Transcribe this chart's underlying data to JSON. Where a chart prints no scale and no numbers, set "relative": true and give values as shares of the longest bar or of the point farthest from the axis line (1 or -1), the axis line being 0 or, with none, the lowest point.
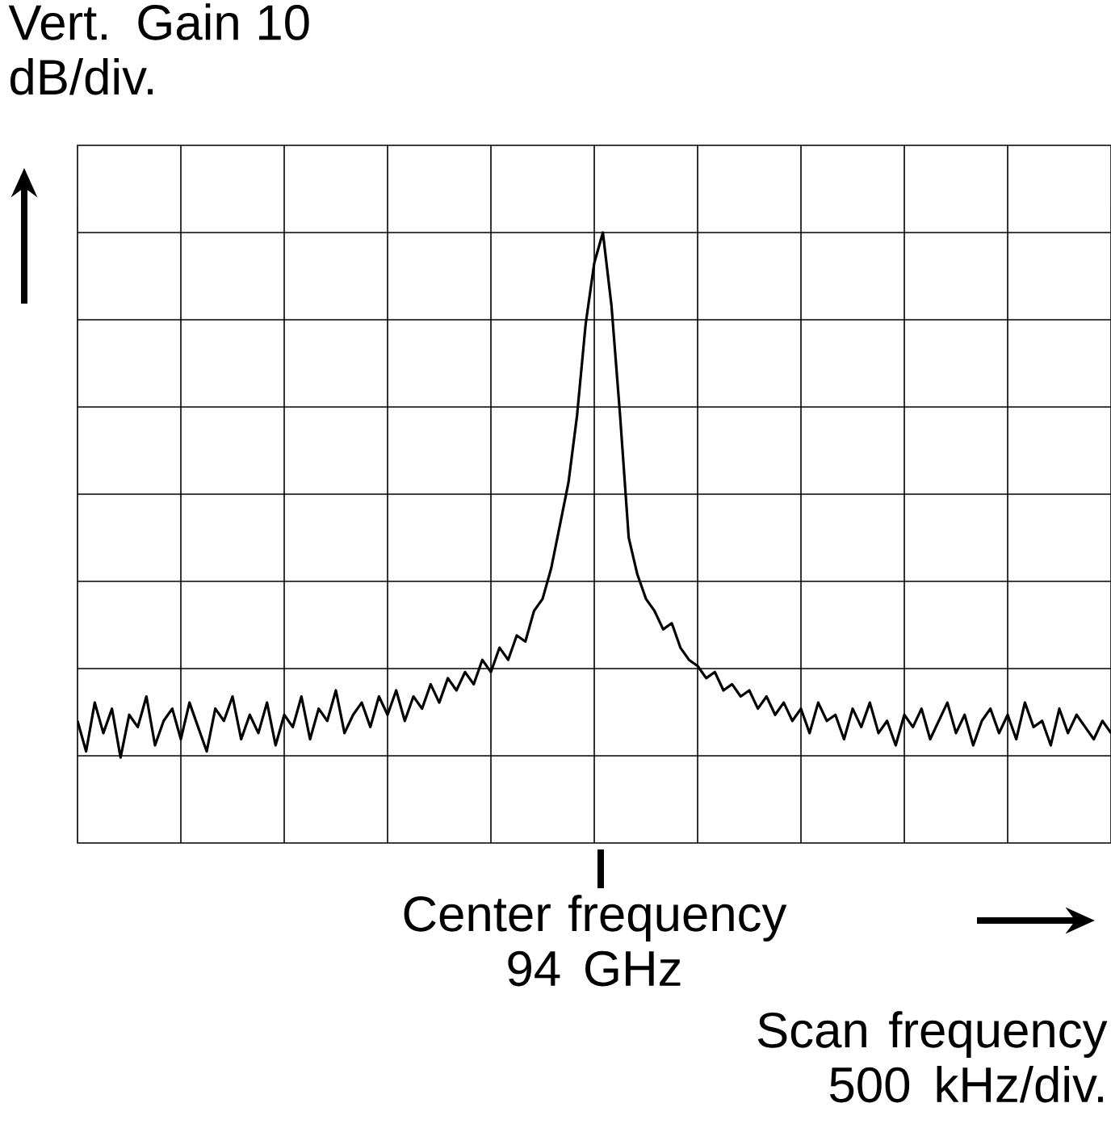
{
  "chart_data": {
    "type": "line",
    "relative": true,
    "annotations": [
      "Vert. Gain 10 dB/div.",
      "Center frequency 94 GHz",
      "Scan frequency 500 kHz/div."
    ],
    "grid": true,
    "color": "#000000",
    "categories": [
      null,
      null,
      null,
      null,
      null,
      null,
      null,
      null,
      null,
      null,
      null,
      null,
      null,
      null,
      null,
      null,
      null,
      null,
      null,
      null,
      null,
      null,
      null,
      null,
      null,
      null,
      null,
      null,
      null,
      null,
      null,
      null,
      null,
      null,
      null,
      null,
      null,
      null,
      null,
      null,
      null,
      null,
      null,
      null,
      null,
      null,
      null,
      null,
      null,
      null,
      null,
      null,
      null,
      null,
      null,
      null,
      null,
      null,
      null,
      null,
      null,
      null,
      null,
      null,
      null,
      null,
      null,
      null,
      null,
      null,
      null,
      null,
      null,
      null,
      null,
      null,
      null,
      null,
      null,
      null,
      null,
      null,
      null,
      null,
      null,
      null,
      null,
      null,
      null,
      null,
      null,
      null,
      null,
      null,
      null,
      null,
      null,
      null,
      null,
      null,
      null,
      null,
      null,
      null,
      null,
      null,
      null,
      null,
      null,
      null,
      null,
      null,
      null,
      null,
      null,
      null,
      null,
      null,
      null,
      null,
      null
    ],
    "values": [
      0.2,
      0.15,
      0.23,
      0.18,
      0.22,
      0.14,
      0.21,
      0.19,
      0.24,
      0.16,
      0.2,
      0.22,
      0.17,
      0.23,
      0.19,
      0.15,
      0.22,
      0.2,
      0.24,
      0.17,
      0.21,
      0.18,
      0.23,
      0.16,
      0.21,
      0.19,
      0.24,
      0.17,
      0.22,
      0.2,
      0.25,
      0.18,
      0.21,
      0.23,
      0.19,
      0.24,
      0.21,
      0.25,
      0.2,
      0.24,
      0.22,
      0.26,
      0.23,
      0.27,
      0.25,
      0.28,
      0.26,
      0.3,
      0.28,
      0.32,
      0.3,
      0.34,
      0.33,
      0.38,
      0.4,
      0.45,
      0.52,
      0.59,
      0.7,
      0.85,
      0.95,
      1.0,
      0.88,
      0.7,
      0.5,
      0.44,
      0.4,
      0.38,
      0.35,
      0.36,
      0.32,
      0.3,
      0.29,
      0.27,
      0.28,
      0.25,
      0.26,
      0.24,
      0.25,
      0.22,
      0.24,
      0.21,
      0.23,
      0.2,
      0.22,
      0.18,
      0.23,
      0.2,
      0.21,
      0.17,
      0.22,
      0.19,
      0.23,
      0.18,
      0.2,
      0.16,
      0.21,
      0.19,
      0.22,
      0.17,
      0.2,
      0.23,
      0.18,
      0.21,
      0.16,
      0.2,
      0.22,
      0.18,
      0.21,
      0.17,
      0.23,
      0.19,
      0.2,
      0.16,
      0.22,
      0.18,
      0.21,
      0.19,
      0.17,
      0.2,
      0.18
    ]
  }
}
